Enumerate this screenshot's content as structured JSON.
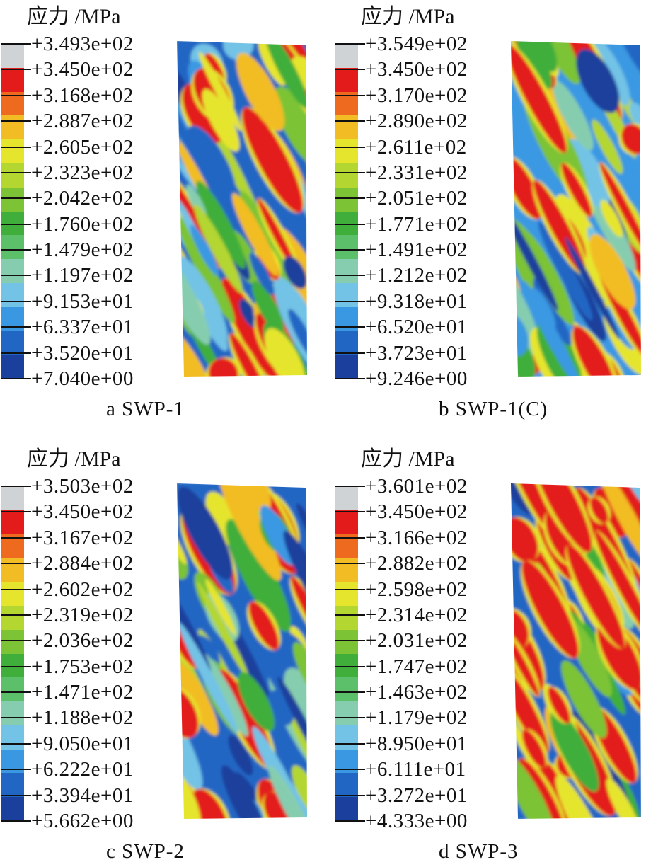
{
  "band_colors": [
    "#cfd3d6",
    "#e31b1b",
    "#ee6a1e",
    "#f2bd24",
    "#e6e52e",
    "#b4d630",
    "#7cc335",
    "#3fae3a",
    "#5cbf6a",
    "#86cdb0",
    "#72c3e6",
    "#3a98e2",
    "#2266c4",
    "#1a3f9c"
  ],
  "panels": [
    {
      "title": "应力 /MPa",
      "caption": "a  SWP-1",
      "ticks": [
        "+3.493e+02",
        "+3.450e+02",
        "+3.168e+02",
        "+2.887e+02",
        "+2.605e+02",
        "+2.323e+02",
        "+2.042e+02",
        "+1.760e+02",
        "+1.479e+02",
        "+1.197e+02",
        "+9.153e+01",
        "+6.337e+01",
        "+3.520e+01",
        "+7.040e+00"
      ]
    },
    {
      "title": "应力 /MPa",
      "caption": "b  SWP-1(C)",
      "ticks": [
        "+3.549e+02",
        "+3.450e+02",
        "+3.170e+02",
        "+2.890e+02",
        "+2.611e+02",
        "+2.331e+02",
        "+2.051e+02",
        "+1.771e+02",
        "+1.491e+02",
        "+1.212e+02",
        "+9.318e+01",
        "+6.520e+01",
        "+3.723e+01",
        "+9.246e+00"
      ]
    },
    {
      "title": "应力 /MPa",
      "caption": "c  SWP-2",
      "ticks": [
        "+3.503e+02",
        "+3.450e+02",
        "+3.167e+02",
        "+2.884e+02",
        "+2.602e+02",
        "+2.319e+02",
        "+2.036e+02",
        "+1.753e+02",
        "+1.471e+02",
        "+1.188e+02",
        "+9.050e+01",
        "+6.222e+01",
        "+3.394e+01",
        "+5.662e+00"
      ]
    },
    {
      "title": "应力 /MPa",
      "caption": "d  SWP-3",
      "ticks": [
        "+3.601e+02",
        "+3.450e+02",
        "+3.166e+02",
        "+2.882e+02",
        "+2.598e+02",
        "+2.314e+02",
        "+2.031e+02",
        "+1.747e+02",
        "+1.463e+02",
        "+1.179e+02",
        "+8.950e+01",
        "+6.111e+01",
        "+3.272e+01",
        "+4.333e+00"
      ]
    }
  ]
}
